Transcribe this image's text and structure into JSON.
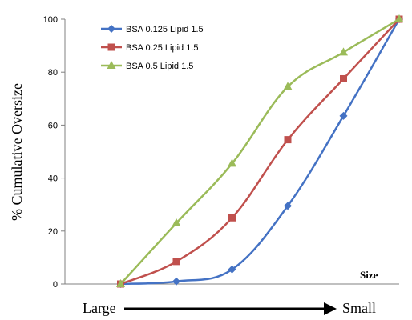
{
  "chart_data": {
    "type": "line",
    "title": "",
    "xlabel": "Size",
    "ylabel": "% Cumulative Oversize",
    "ylim": [
      0,
      100
    ],
    "yticks": [
      0,
      20,
      40,
      60,
      80,
      100
    ],
    "x": [
      1,
      2,
      3,
      4,
      5,
      6
    ],
    "xlim": [
      0,
      6
    ],
    "grid": false,
    "legend_position": "top-left",
    "direction": {
      "left_label": "Large",
      "right_label": "Small"
    },
    "series": [
      {
        "name": "BSA 0.125 Lipid 1.5",
        "color": "#4472C4",
        "marker": "diamond",
        "values": [
          0,
          1,
          5.5,
          29.5,
          63.5,
          100
        ]
      },
      {
        "name": "BSA 0.25 Lipid 1.5",
        "color": "#C0504D",
        "marker": "square",
        "values": [
          0,
          8.5,
          25,
          54.5,
          77.5,
          100
        ]
      },
      {
        "name": "BSA 0.5 Lipid 1.5",
        "color": "#9BBB59",
        "marker": "triangle",
        "values": [
          0,
          23,
          45.5,
          74.5,
          87.5,
          100
        ]
      }
    ]
  }
}
